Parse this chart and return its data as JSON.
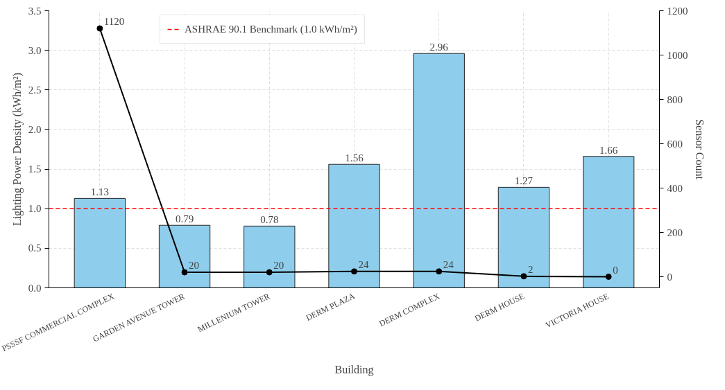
{
  "chart_data": {
    "type": "bar",
    "xlabel": "Building",
    "ylabel": "Lighting Power Density (kWh/m²)",
    "y2label": "Sensor Count",
    "categories": [
      "PSSSF COMMERCIAL COMPLEX",
      "GARDEN AVENUE TOWER",
      "MILLENIUM TOWER",
      "DERM PLAZA",
      "DERM COMPLEX",
      "DERM HOUSE",
      "VICTORIA HOUSE"
    ],
    "series": [
      {
        "color": "#8ecdeb",
        "values": [
          1.13,
          0.79,
          0.78,
          1.56,
          2.96,
          1.27,
          1.66
        ]
      },
      {
        "type": "line",
        "axis": "y2",
        "color": "#000000",
        "marker": "circle",
        "values": [
          1120,
          20,
          20,
          24,
          24,
          2,
          0
        ]
      }
    ],
    "data_labels": true,
    "ylim": [
      0,
      3.5
    ],
    "yticks": [
      {
        "value": 0,
        "label": "0.0"
      },
      0.5,
      {
        "value": 1,
        "label": "1.0"
      },
      1.5,
      {
        "value": 2,
        "label": "2.0"
      },
      2.5,
      {
        "value": 3,
        "label": "3.0"
      },
      3.5
    ],
    "y2lim": [
      -50,
      1200
    ],
    "y2ticks": [
      0,
      200,
      400,
      600,
      800,
      1000,
      1200
    ],
    "ref_lines": [
      {
        "axis": "y",
        "value": 1.0,
        "label": "ASHRAE 90.1 Benchmark (1.0 kWh/m²)",
        "color": "#ff0000",
        "line_style": "dashed"
      }
    ],
    "grid": true,
    "legend": "top left"
  }
}
